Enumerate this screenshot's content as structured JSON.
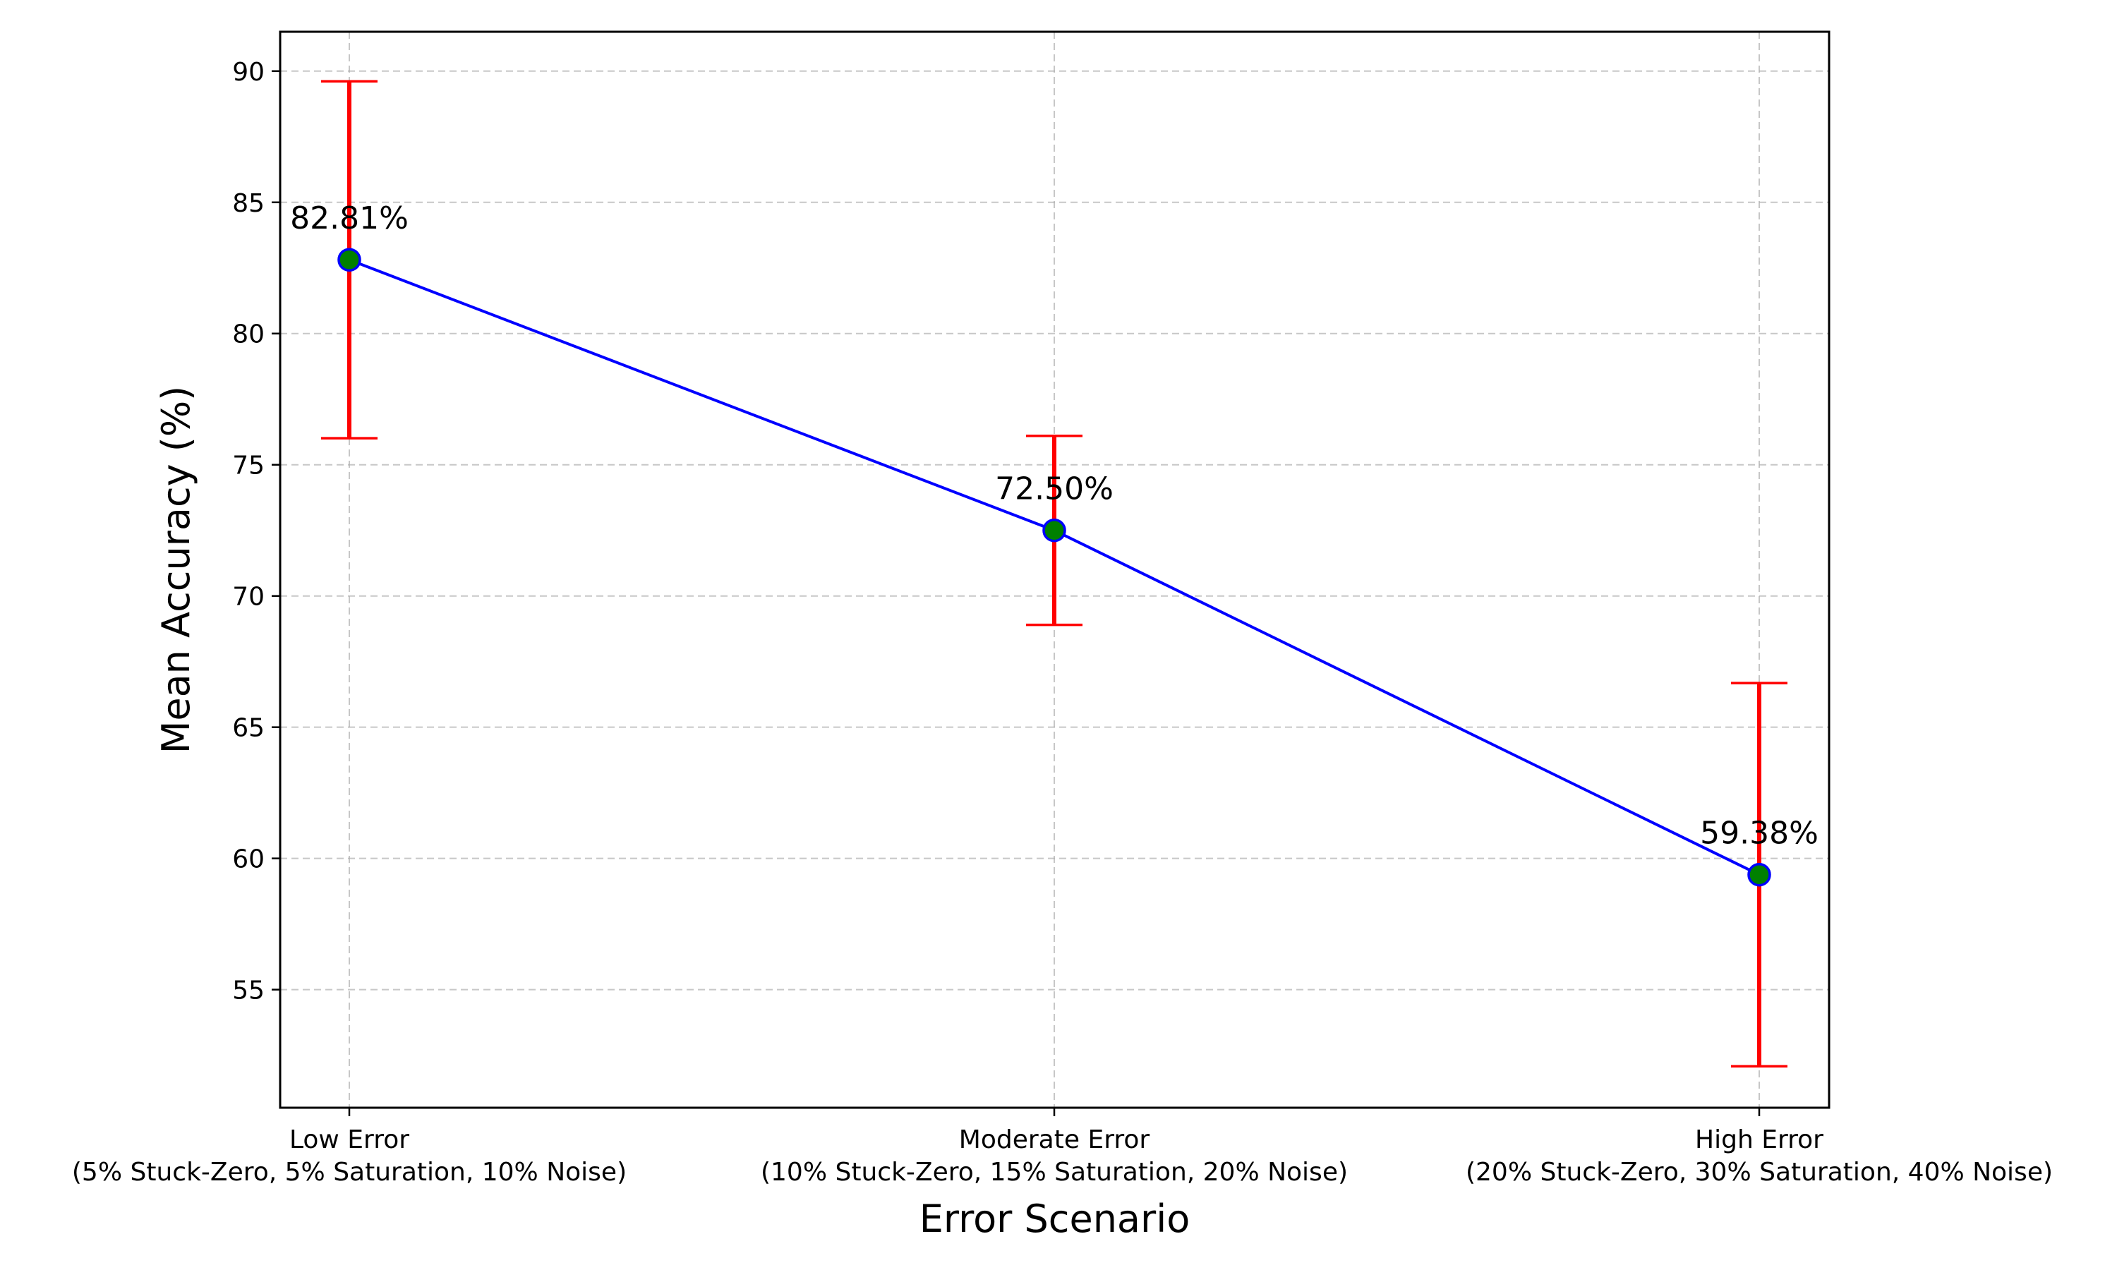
{
  "chart_data": {
    "type": "line",
    "title": "",
    "xlabel": "Error Scenario",
    "ylabel": "Mean Accuracy (%)",
    "categories": [
      [
        "Low Error",
        "(5% Stuck-Zero, 5% Saturation, 10% Noise)"
      ],
      [
        "Moderate Error",
        "(10% Stuck-Zero, 15% Saturation, 20% Noise)"
      ],
      [
        "High Error",
        "(20% Stuck-Zero, 30% Saturation, 40% Noise)"
      ]
    ],
    "values": [
      82.81,
      72.5,
      59.38
    ],
    "error": [
      6.8,
      3.6,
      7.3
    ],
    "value_labels": [
      "82.81%",
      "72.50%",
      "59.38%"
    ],
    "ylim": [
      50.5,
      91.5
    ],
    "yticks": [
      55,
      60,
      65,
      70,
      75,
      80,
      85,
      90
    ],
    "grid": true,
    "colors": {
      "line": "#0000ff",
      "marker_fill": "#008000",
      "marker_edge": "#0000ff",
      "error_bar": "#ff0000"
    }
  }
}
